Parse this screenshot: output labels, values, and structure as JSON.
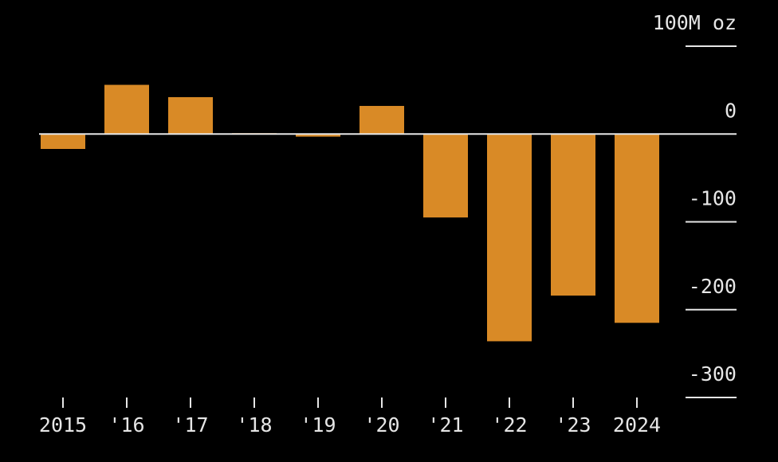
{
  "chart_data": {
    "type": "bar",
    "categories": [
      "2015",
      "'16",
      "'17",
      "'18",
      "'19",
      "'20",
      "'21",
      "'22",
      "'23",
      "2024"
    ],
    "values": [
      -17,
      56,
      42,
      1,
      -3,
      32,
      -95,
      -236,
      -184,
      -215
    ],
    "color": "#d98a26",
    "ylim": [
      -300,
      100
    ],
    "yticks": [
      {
        "value": 100,
        "label": "100M oz"
      },
      0,
      -100,
      -200,
      -300
    ]
  }
}
